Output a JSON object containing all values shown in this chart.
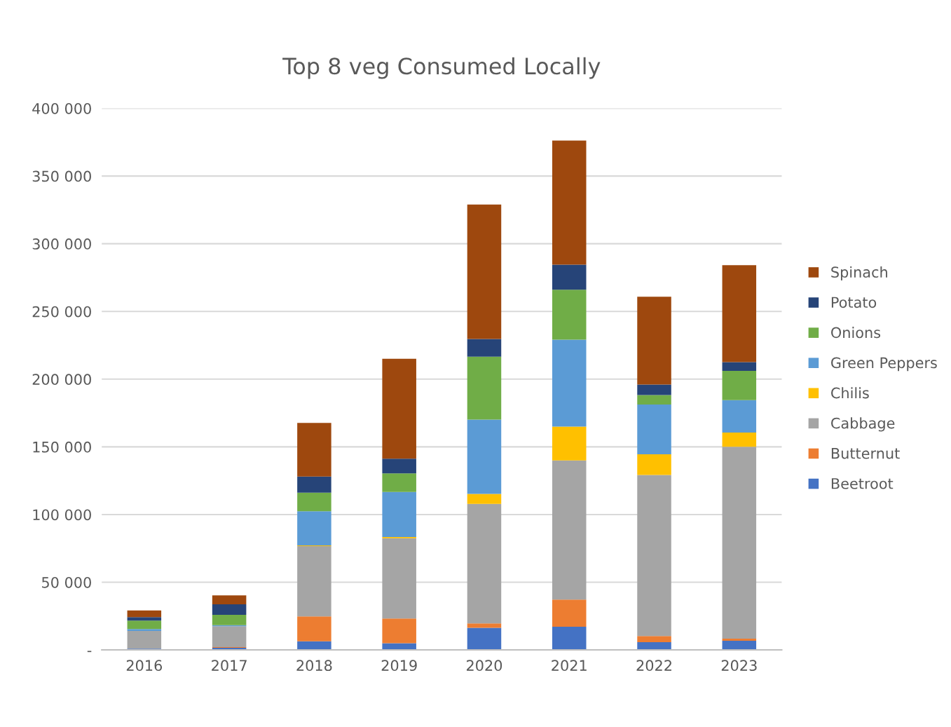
{
  "chart_data": {
    "type": "bar",
    "title": "Top 8 veg Consumed Locally",
    "stacked": true,
    "categories": [
      "2016",
      "2017",
      "2018",
      "2019",
      "2020",
      "2021",
      "2022",
      "2023"
    ],
    "series": [
      {
        "name": "Beetroot",
        "color": "#4472c4",
        "values": [
          1000,
          1600,
          6400,
          5000,
          16300,
          17100,
          5800,
          6800
        ]
      },
      {
        "name": "Butternut",
        "color": "#ed7d31",
        "values": [
          0,
          500,
          18300,
          18200,
          3300,
          20100,
          4500,
          1500
        ]
      },
      {
        "name": "Cabbage",
        "color": "#a5a5a5",
        "values": [
          13000,
          15400,
          52000,
          59300,
          88200,
          102800,
          118900,
          141700
        ]
      },
      {
        "name": "Chilis",
        "color": "#ffc000",
        "values": [
          0,
          0,
          500,
          900,
          7500,
          24900,
          15300,
          10600
        ]
      },
      {
        "name": "Green Peppers",
        "color": "#5b9bd5",
        "values": [
          1400,
          800,
          25200,
          33300,
          54800,
          64300,
          36700,
          23900
        ]
      },
      {
        "name": "Onions",
        "color": "#70ad47",
        "values": [
          6200,
          7600,
          13700,
          13700,
          46500,
          36900,
          7000,
          21600
        ]
      },
      {
        "name": "Potato",
        "color": "#264478",
        "values": [
          2600,
          7800,
          11900,
          10900,
          13100,
          18400,
          7800,
          6500
        ]
      },
      {
        "name": "Spinach",
        "color": "#9e480e",
        "values": [
          5000,
          6600,
          39700,
          73700,
          99300,
          91700,
          64800,
          71600
        ]
      }
    ],
    "ylim": [
      0,
      400000
    ],
    "yticks": [
      {
        "value": 0,
        "label": "-"
      },
      {
        "value": 50000,
        "label": "50 000"
      },
      {
        "value": 100000,
        "label": "100 000"
      },
      {
        "value": 150000,
        "label": "150 000"
      },
      {
        "value": 200000,
        "label": "200 000"
      },
      {
        "value": 250000,
        "label": "250 000"
      },
      {
        "value": 300000,
        "label": "300 000"
      },
      {
        "value": 350000,
        "label": "350 000"
      },
      {
        "value": 400000,
        "label": "400 000"
      }
    ],
    "grid": "y",
    "legend": "right"
  }
}
